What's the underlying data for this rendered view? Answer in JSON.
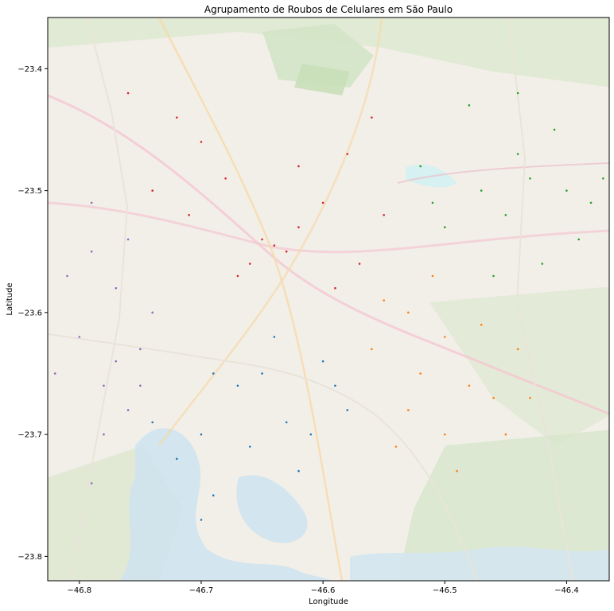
{
  "chart_data": {
    "type": "scatter",
    "title": "Agrupamento de Roubos de Celulares em São Paulo",
    "xlabel": "Longitude",
    "ylabel": "Latitude",
    "xlim": [
      -46.826,
      -46.365
    ],
    "ylim": [
      -23.82,
      -23.358
    ],
    "xticks": [
      -46.8,
      -46.7,
      -46.6,
      -46.5,
      -46.4
    ],
    "yticks": [
      -23.4,
      -23.5,
      -23.6,
      -23.7,
      -23.8
    ],
    "xtick_labels": [
      "−46.8",
      "−46.7",
      "−46.6",
      "−46.5",
      "−46.4"
    ],
    "ytick_labels": [
      "−23.4",
      "−23.5",
      "−23.6",
      "−23.7",
      "−23.8"
    ],
    "grid": false,
    "legend": null,
    "basemap": "street map tiles (São Paulo region)",
    "series": [
      {
        "color": "#d62728",
        "region": "north-central",
        "points": [
          [
            -46.64,
            -23.545
          ],
          [
            -46.63,
            -23.55
          ],
          [
            -46.65,
            -23.54
          ],
          [
            -46.62,
            -23.53
          ],
          [
            -46.66,
            -23.56
          ],
          [
            -46.6,
            -23.51
          ],
          [
            -46.68,
            -23.49
          ],
          [
            -46.7,
            -23.46
          ],
          [
            -46.72,
            -23.44
          ],
          [
            -46.58,
            -23.47
          ],
          [
            -46.56,
            -23.44
          ],
          [
            -46.67,
            -23.57
          ],
          [
            -46.59,
            -23.58
          ],
          [
            -46.55,
            -23.52
          ],
          [
            -46.71,
            -23.52
          ],
          [
            -46.74,
            -23.5
          ],
          [
            -46.76,
            -23.42
          ],
          [
            -46.62,
            -23.48
          ],
          [
            -46.57,
            -23.56
          ]
        ]
      },
      {
        "color": "#ff7f0e",
        "region": "south-east",
        "points": [
          [
            -46.53,
            -23.6
          ],
          [
            -46.5,
            -23.62
          ],
          [
            -46.52,
            -23.65
          ],
          [
            -46.48,
            -23.66
          ],
          [
            -46.46,
            -23.67
          ],
          [
            -46.44,
            -23.63
          ],
          [
            -46.5,
            -23.7
          ],
          [
            -46.53,
            -23.68
          ],
          [
            -46.56,
            -23.63
          ],
          [
            -46.45,
            -23.7
          ],
          [
            -46.55,
            -23.59
          ],
          [
            -46.49,
            -23.73
          ],
          [
            -46.51,
            -23.57
          ],
          [
            -46.47,
            -23.61
          ],
          [
            -46.43,
            -23.67
          ],
          [
            -46.54,
            -23.71
          ]
        ]
      },
      {
        "color": "#2ca02c",
        "region": "north-east",
        "points": [
          [
            -46.47,
            -23.5
          ],
          [
            -46.45,
            -23.52
          ],
          [
            -46.43,
            -23.49
          ],
          [
            -46.4,
            -23.5
          ],
          [
            -46.38,
            -23.51
          ],
          [
            -46.5,
            -23.53
          ],
          [
            -46.52,
            -23.48
          ],
          [
            -46.48,
            -23.43
          ],
          [
            -46.44,
            -23.42
          ],
          [
            -46.41,
            -23.45
          ],
          [
            -46.46,
            -23.57
          ],
          [
            -46.42,
            -23.56
          ],
          [
            -46.39,
            -23.54
          ],
          [
            -46.51,
            -23.51
          ],
          [
            -46.44,
            -23.47
          ],
          [
            -46.37,
            -23.49
          ]
        ]
      },
      {
        "color": "#1f77b4",
        "region": "south",
        "points": [
          [
            -46.65,
            -23.65
          ],
          [
            -46.63,
            -23.69
          ],
          [
            -46.61,
            -23.7
          ],
          [
            -46.67,
            -23.66
          ],
          [
            -46.69,
            -23.65
          ],
          [
            -46.6,
            -23.64
          ],
          [
            -46.58,
            -23.68
          ],
          [
            -46.64,
            -23.62
          ],
          [
            -46.7,
            -23.7
          ],
          [
            -46.72,
            -23.72
          ],
          [
            -46.7,
            -23.77
          ],
          [
            -46.69,
            -23.75
          ],
          [
            -46.62,
            -23.73
          ],
          [
            -46.66,
            -23.71
          ],
          [
            -46.59,
            -23.66
          ],
          [
            -46.74,
            -23.69
          ]
        ]
      },
      {
        "color": "#9467bd",
        "region": "west",
        "points": [
          [
            -46.79,
            -23.55
          ],
          [
            -46.77,
            -23.58
          ],
          [
            -46.8,
            -23.62
          ],
          [
            -46.78,
            -23.66
          ],
          [
            -46.76,
            -23.68
          ],
          [
            -46.75,
            -23.63
          ],
          [
            -46.81,
            -23.57
          ],
          [
            -46.79,
            -23.51
          ],
          [
            -46.76,
            -23.54
          ],
          [
            -46.78,
            -23.7
          ],
          [
            -46.79,
            -23.74
          ],
          [
            -46.74,
            -23.6
          ],
          [
            -46.82,
            -23.65
          ],
          [
            -46.77,
            -23.64
          ],
          [
            -46.75,
            -23.66
          ]
        ]
      }
    ]
  }
}
